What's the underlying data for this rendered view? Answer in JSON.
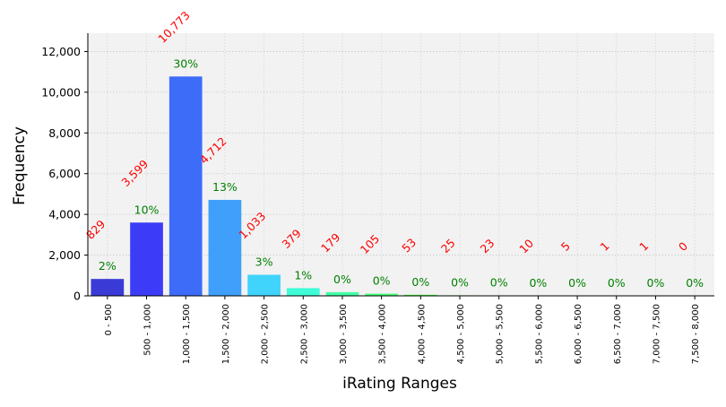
{
  "chart_data": {
    "type": "bar",
    "xlabel": "iRating Ranges",
    "ylabel": "Frequency",
    "ylim": [
      0,
      12900
    ],
    "yticks": [
      0,
      2000,
      4000,
      6000,
      8000,
      10000,
      12000
    ],
    "ytick_labels": [
      "0",
      "2,000",
      "4,000",
      "6,000",
      "8,000",
      "10,000",
      "12,000"
    ],
    "grid": true,
    "categories": [
      "0 - 500",
      "500 - 1,000",
      "1,000 - 1,500",
      "1,500 - 2,000",
      "2,000 - 2,500",
      "2,500 - 3,000",
      "3,000 - 3,500",
      "3,500 - 4,000",
      "4,000 - 4,500",
      "4,500 - 5,000",
      "5,000 - 5,500",
      "5,500 - 6,000",
      "6,000 - 6,500",
      "6,500 - 7,000",
      "7,000 - 7,500",
      "7,500 - 8,000"
    ],
    "values": [
      829,
      3599,
      10773,
      4712,
      1033,
      379,
      179,
      105,
      53,
      25,
      23,
      10,
      5,
      1,
      1,
      0
    ],
    "value_labels": [
      "829",
      "3,599",
      "10,773",
      "4,712",
      "1,033",
      "379",
      "179",
      "105",
      "53",
      "25",
      "23",
      "10",
      "5",
      "1",
      "1",
      "0"
    ],
    "percent_labels": [
      "2%",
      "10%",
      "30%",
      "13%",
      "3%",
      "1%",
      "0%",
      "0%",
      "0%",
      "0%",
      "0%",
      "0%",
      "0%",
      "0%",
      "0%",
      "0%"
    ],
    "bar_colors": [
      "#3a3ad6",
      "#3c3cf8",
      "#3d6cf9",
      "#3f9ffa",
      "#40d3fb",
      "#40fcd8",
      "#42fda6",
      "#43fe73",
      "#44ff40",
      "#76ff3e",
      "#a8ff3c",
      "#daff3a",
      "#fffa38",
      "#ffc736",
      "#ff9434",
      "#ff6132"
    ],
    "value_label_color": "#ff0000",
    "percent_label_color": "#008000"
  }
}
